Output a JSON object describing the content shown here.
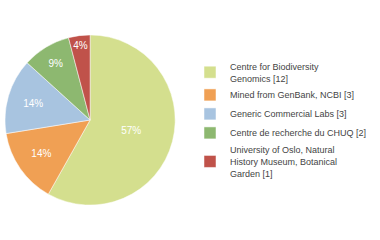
{
  "chart_data": {
    "type": "pie",
    "categories": [
      "Centre for Biodiversity\nGenomics [12]",
      "Mined from GenBank, NCBI [3]",
      "Generic Commercial Labs [3]",
      "Centre de recherche du CHUQ [2]",
      "University of Oslo, Natural\nHistory Museum, Botanical\nGarden [1]"
    ],
    "values": [
      57,
      14,
      14,
      9,
      4
    ],
    "value_labels": [
      "57%",
      "14%",
      "14%",
      "9%",
      "4%"
    ],
    "colors": [
      "#d4df8e",
      "#f0a054",
      "#a8c4e0",
      "#8db870",
      "#c0524a"
    ],
    "data_labels": true,
    "legend": "right"
  }
}
